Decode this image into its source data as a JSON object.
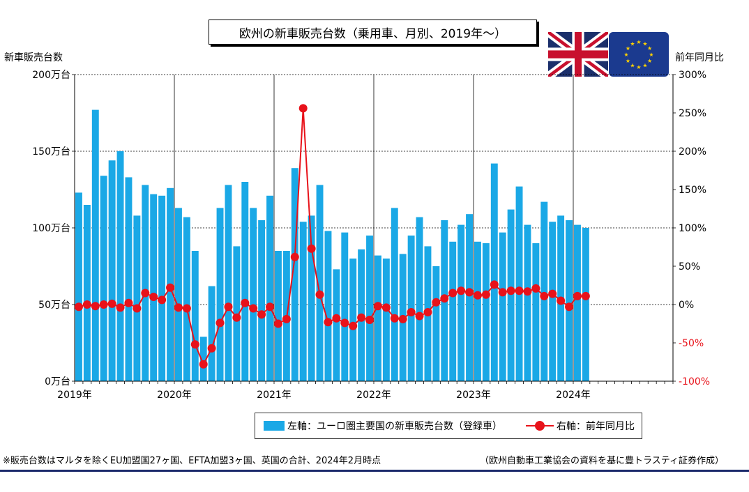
{
  "title": "欧州の新車販売台数（乗用車、月別、2019年～）",
  "left_axis_title": "新車販売台数",
  "right_axis_title": "前年同月比",
  "legend": {
    "bar_label": "左軸：ユーロ圏主要国の新車販売台数（登録車）",
    "line_label": "右軸：前年同月比"
  },
  "footnote_left": "※販売台数はマルタを除くEU加盟国27ヶ国、EFTA加盟3ヶ国、英国の合計、2024年2月時点",
  "footnote_right": "（欧州自動車工業協会の資料を基に豊トラスティ証券作成）",
  "flags": [
    "uk-flag",
    "eu-flag"
  ],
  "colors": {
    "bar": "#1aa8e6",
    "line": "#e8121a",
    "negative_tick": "#e8121a"
  },
  "chart_data": {
    "type": "bar",
    "x": [
      "2019-01",
      "2019-02",
      "2019-03",
      "2019-04",
      "2019-05",
      "2019-06",
      "2019-07",
      "2019-08",
      "2019-09",
      "2019-10",
      "2019-11",
      "2019-12",
      "2020-01",
      "2020-02",
      "2020-03",
      "2020-04",
      "2020-05",
      "2020-06",
      "2020-07",
      "2020-08",
      "2020-09",
      "2020-10",
      "2020-11",
      "2020-12",
      "2021-01",
      "2021-02",
      "2021-03",
      "2021-04",
      "2021-05",
      "2021-06",
      "2021-07",
      "2021-08",
      "2021-09",
      "2021-10",
      "2021-11",
      "2021-12",
      "2022-01",
      "2022-02",
      "2022-03",
      "2022-04",
      "2022-05",
      "2022-06",
      "2022-07",
      "2022-08",
      "2022-09",
      "2022-10",
      "2022-11",
      "2022-12",
      "2023-01",
      "2023-02",
      "2023-03",
      "2023-04",
      "2023-05",
      "2023-06",
      "2023-07",
      "2023-08",
      "2023-09",
      "2023-10",
      "2023-11",
      "2023-12",
      "2024-01",
      "2024-02"
    ],
    "x_tick_labels": [
      "2019年",
      "2020年",
      "2021年",
      "2022年",
      "2023年",
      "2024年"
    ],
    "xlim_months": 72,
    "series": [
      {
        "name": "左軸：ユーロ圏主要国の新車販売台数（登録車）",
        "axis": "left",
        "type": "bar",
        "values": [
          123,
          115,
          177,
          134,
          144,
          150,
          133,
          108,
          128,
          122,
          121,
          126,
          113,
          107,
          85,
          29,
          62,
          113,
          128,
          88,
          130,
          113,
          105,
          121,
          85,
          85,
          139,
          104,
          108,
          128,
          98,
          73,
          97,
          80,
          86,
          95,
          82,
          80,
          113,
          83,
          95,
          107,
          88,
          75,
          105,
          91,
          102,
          109,
          91,
          90,
          142,
          97,
          112,
          127,
          102,
          90,
          117,
          104,
          108,
          105,
          102,
          100
        ]
      },
      {
        "name": "右軸：前年同月比",
        "axis": "right",
        "type": "line",
        "values": [
          -3,
          0,
          -2,
          0,
          1,
          -4,
          2,
          -5,
          15,
          10,
          6,
          22,
          -4,
          -5,
          -52,
          -78,
          -57,
          -24,
          -3,
          -17,
          2,
          -5,
          -13,
          -3,
          -25,
          -19,
          62,
          256,
          73,
          13,
          -23,
          -18,
          -24,
          -28,
          -17,
          -20,
          -2,
          -4,
          -18,
          -19,
          -10,
          -15,
          -10,
          3,
          8,
          15,
          18,
          16,
          12,
          13,
          26,
          16,
          18,
          18,
          17,
          21,
          11,
          14,
          5,
          -3,
          11,
          11
        ]
      }
    ],
    "y_left": {
      "min": 0,
      "max": 200,
      "ticks": [
        0,
        50,
        100,
        150,
        200
      ],
      "tick_labels": [
        "0万台",
        "50万台",
        "100万台",
        "150万台",
        "200万台"
      ]
    },
    "y_right": {
      "min": -100,
      "max": 300,
      "ticks": [
        -100,
        -50,
        0,
        50,
        100,
        150,
        200,
        250,
        300
      ],
      "tick_labels": [
        "-100%",
        "-50%",
        "0%",
        "50%",
        "100%",
        "150%",
        "200%",
        "250%",
        "300%"
      ]
    },
    "grid": true,
    "legend_position": "bottom"
  }
}
